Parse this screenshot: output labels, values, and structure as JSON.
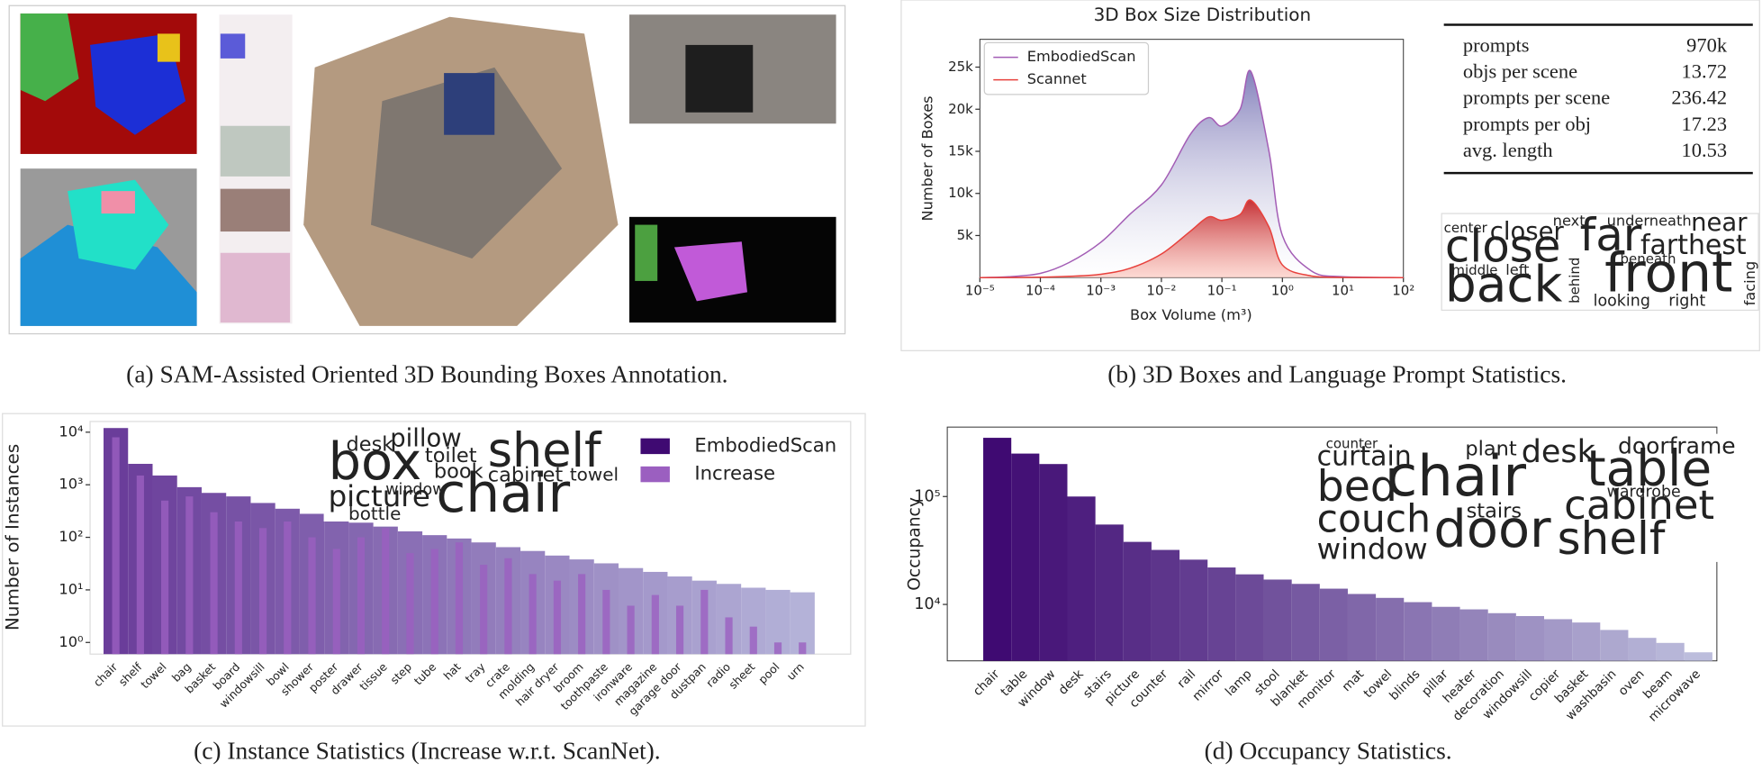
{
  "captions": [
    "(a) SAM-Assisted Oriented 3D Bounding Boxes Annotation.",
    "(b) 3D Boxes and Language Prompt Statistics.",
    "(c) Instance Statistics (Increase w.r.t. ScanNet).",
    "(d) Occupancy Statistics."
  ],
  "prompt_table": {
    "rows": [
      [
        "prompts",
        "970k"
      ],
      [
        "objs per scene",
        "13.72"
      ],
      [
        "prompts per scene",
        "236.42"
      ],
      [
        "prompts per obj",
        "17.23"
      ],
      [
        "avg. length",
        "10.53"
      ]
    ]
  },
  "chart_data": [
    {
      "type": "line",
      "title": "3D Box Size Distribution",
      "x_label": "Box Volume (m³)",
      "y_label": "Number of Boxes",
      "x": [
        1e-05,
        3e-05,
        0.0001,
        0.0003,
        0.001,
        0.003,
        0.01,
        0.03,
        0.06,
        0.1,
        0.2,
        0.3,
        0.6,
        1,
        3,
        10,
        100
      ],
      "series": [
        {
          "name": "EmbodiedScan",
          "color": "#a35db5",
          "fill": "#6f6bb0",
          "values": [
            0,
            100,
            500,
            1800,
            4200,
            7500,
            11000,
            17000,
            19000,
            18000,
            20000,
            24500,
            15000,
            5000,
            800,
            100,
            0
          ]
        },
        {
          "name": "Scannet",
          "color": "#e8413c",
          "fill": "#e8413c",
          "values": [
            0,
            10,
            50,
            150,
            400,
            1100,
            2800,
            5500,
            7200,
            6800,
            7500,
            9200,
            6000,
            1500,
            200,
            20,
            0
          ]
        }
      ],
      "log_x": true,
      "xlim": [
        1e-05,
        100
      ],
      "xticks": [
        {
          "value": 1e-05,
          "label": "10⁻⁵"
        },
        {
          "value": 0.0001,
          "label": "10⁻⁴"
        },
        {
          "value": 0.001,
          "label": "10⁻³"
        },
        {
          "value": 0.01,
          "label": "10⁻²"
        },
        {
          "value": 0.1,
          "label": "10⁻¹"
        },
        {
          "value": 1,
          "label": "10⁰"
        },
        {
          "value": 10,
          "label": "10¹"
        },
        {
          "value": 100,
          "label": "10²"
        }
      ],
      "ylim": [
        0,
        28300
      ],
      "yticks": [
        {
          "value": 5000,
          "label": "5k"
        },
        {
          "value": 10000,
          "label": "10k"
        },
        {
          "value": 15000,
          "label": "15k"
        },
        {
          "value": 20000,
          "label": "20k"
        },
        {
          "value": 25000,
          "label": "25k"
        }
      ],
      "legend": "upper left",
      "wordcloud": [
        {
          "text": "center",
          "color": "#2e8a8a"
        },
        {
          "text": "closer",
          "color": "#3b528b"
        },
        {
          "text": "next",
          "color": "#b5de2b"
        },
        {
          "text": "underneath",
          "color": "#35b779"
        },
        {
          "text": "near",
          "color": "#31688e"
        },
        {
          "text": "close",
          "color": "#5ec962"
        },
        {
          "text": "far",
          "color": "#21918c"
        },
        {
          "text": "farthest",
          "color": "#2a788e"
        },
        {
          "text": "front",
          "color": "#6ece58"
        },
        {
          "text": "back",
          "color": "#7ad151"
        },
        {
          "text": "middle",
          "color": "#443983"
        },
        {
          "text": "left",
          "color": "#31688e"
        },
        {
          "text": "behind",
          "color": "#35b779"
        },
        {
          "text": "beneath",
          "color": "#b5de2b"
        },
        {
          "text": "looking",
          "color": "#3b528b"
        },
        {
          "text": "right",
          "color": "#46337e"
        },
        {
          "text": "facing",
          "color": "#414487"
        }
      ]
    },
    {
      "type": "bar",
      "y_label": "Number of Instances",
      "categories": [
        "chair",
        "shelf",
        "towel",
        "bag",
        "basket",
        "board",
        "windowsill",
        "bowl",
        "shower",
        "poster",
        "drawer",
        "tissue",
        "step",
        "tube",
        "hat",
        "tray",
        "crate",
        "molding",
        "hair dryer",
        "broom",
        "toothpaste",
        "ironware",
        "magazine",
        "garage door",
        "dustpan",
        "radio",
        "sheet",
        "pool",
        "urn"
      ],
      "series": [
        {
          "name": "EmbodiedScan",
          "color": "#3f0a72",
          "values": [
            12000,
            2500,
            1500,
            900,
            700,
            600,
            450,
            350,
            280,
            230,
            190,
            160,
            130,
            110,
            95,
            80,
            65,
            55,
            45,
            38,
            32,
            26,
            22,
            18,
            15,
            13,
            11,
            10,
            9
          ]
        },
        {
          "name": "Increase",
          "color": "#9b5fc0",
          "values": [
            8000,
            1500,
            500,
            600,
            300,
            200,
            150,
            200,
            100,
            60,
            100,
            150,
            50,
            60,
            80,
            30,
            40,
            20,
            15,
            20,
            10,
            5,
            8,
            5,
            10,
            3,
            2,
            1,
            1
          ]
        }
      ],
      "colormap": [
        "#6a3d9a",
        "#b4b2d8"
      ],
      "log_y": true,
      "ylim": [
        0.6,
        16000
      ],
      "yticks": [
        {
          "value": 1,
          "label": "10⁰"
        },
        {
          "value": 10,
          "label": "10¹"
        },
        {
          "value": 100,
          "label": "10²"
        },
        {
          "value": 1000,
          "label": "10³"
        },
        {
          "value": 10000,
          "label": "10⁴"
        }
      ],
      "legend": "upper right",
      "wordcloud": [
        {
          "text": "desk",
          "color": "#31688e"
        },
        {
          "text": "pillow",
          "color": "#21918c"
        },
        {
          "text": "box",
          "color": "#3b528b"
        },
        {
          "text": "toilet",
          "color": "#b5de2b"
        },
        {
          "text": "shelf",
          "color": "#7ad151"
        },
        {
          "text": "book",
          "color": "#a0da39"
        },
        {
          "text": "cabinet",
          "color": "#26828e"
        },
        {
          "text": "towel",
          "color": "#35b779"
        },
        {
          "text": "window",
          "color": "#440154"
        },
        {
          "text": "picture",
          "color": "#2a788e"
        },
        {
          "text": "chair",
          "color": "#481f70"
        },
        {
          "text": "bottle",
          "color": "#3b528b"
        }
      ]
    },
    {
      "type": "bar",
      "y_label": "Occupancy",
      "categories": [
        "chair",
        "table",
        "window",
        "desk",
        "stairs",
        "picture",
        "counter",
        "rail",
        "mirror",
        "lamp",
        "stool",
        "blanket",
        "monitor",
        "mat",
        "towel",
        "blinds",
        "pillar",
        "heater",
        "decoration",
        "windowsill",
        "copier",
        "basket",
        "washbasin",
        "oven",
        "beam",
        "microwave"
      ],
      "values": [
        350000,
        250000,
        200000,
        100000,
        55000,
        38000,
        32000,
        26000,
        22000,
        19000,
        17000,
        15500,
        14000,
        12500,
        11500,
        10500,
        9500,
        9000,
        8300,
        7800,
        7300,
        6800,
        5800,
        4900,
        4400,
        3600
      ],
      "colormap": [
        "#3f0a72",
        "#bcbddc"
      ],
      "log_y": true,
      "ylim": [
        3000,
        440000
      ],
      "yticks": [
        {
          "value": 10000,
          "label": "10⁴"
        },
        {
          "value": 100000,
          "label": "10⁵"
        }
      ],
      "wordcloud": [
        {
          "text": "counter",
          "color": "#b5de2b"
        },
        {
          "text": "curtain",
          "color": "#31688e"
        },
        {
          "text": "plant",
          "color": "#3b528b"
        },
        {
          "text": "desk",
          "color": "#21918c"
        },
        {
          "text": "doorframe",
          "color": "#443983"
        },
        {
          "text": "bed",
          "color": "#21918c"
        },
        {
          "text": "chair",
          "color": "#2a788e"
        },
        {
          "text": "table",
          "color": "#1f9e89"
        },
        {
          "text": "wardrobe",
          "color": "#b5de2b"
        },
        {
          "text": "stairs",
          "color": "#3b528b"
        },
        {
          "text": "cabinet",
          "color": "#35b779"
        },
        {
          "text": "couch",
          "color": "#26828e"
        },
        {
          "text": "door",
          "color": "#31688e"
        },
        {
          "text": "shelf",
          "color": "#2a788e"
        },
        {
          "text": "window",
          "color": "#3e4a89"
        }
      ]
    }
  ]
}
